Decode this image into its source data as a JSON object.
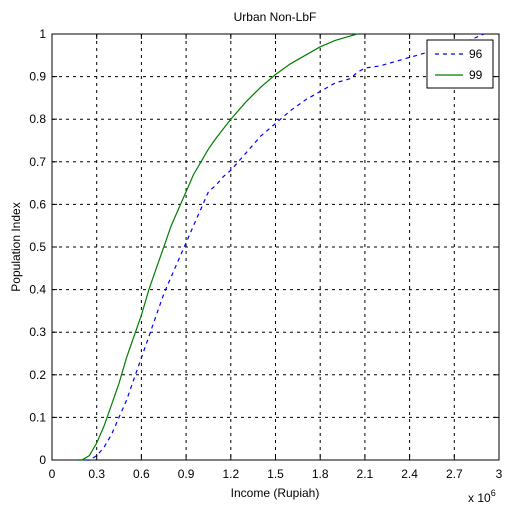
{
  "chart_data": {
    "type": "line",
    "title": "Urban Non-LbF",
    "xlabel": "Income (Rupiah)",
    "ylabel": "Population Index",
    "x_multiplier_base": "x 10",
    "x_multiplier_exp": "6",
    "xlim": [
      0,
      3
    ],
    "ylim": [
      0,
      1
    ],
    "x_ticks": [
      0,
      0.3,
      0.6,
      0.9,
      1.2,
      1.5,
      1.8,
      2.1,
      2.4,
      2.7,
      3
    ],
    "x_tick_labels": [
      "0",
      "0.3",
      "0.6",
      "0.9",
      "1.2",
      "1.5",
      "1.8",
      "2.1",
      "2.4",
      "2.7",
      "3"
    ],
    "y_ticks": [
      0,
      0.1,
      0.2,
      0.3,
      0.4,
      0.5,
      0.6,
      0.7,
      0.8,
      0.9,
      1
    ],
    "y_tick_labels": [
      "0",
      "0.1",
      "0.2",
      "0.3",
      "0.4",
      "0.5",
      "0.6",
      "0.7",
      "0.8",
      "0.9",
      "1"
    ],
    "grid": true,
    "legend_position": "top-right",
    "series": [
      {
        "name": "96",
        "color": "#0000ff",
        "dash": "dashed",
        "x": [
          0.17,
          0.25,
          0.3,
          0.35,
          0.4,
          0.45,
          0.5,
          0.55,
          0.6,
          0.65,
          0.7,
          0.75,
          0.8,
          0.85,
          0.9,
          0.95,
          1.0,
          1.05,
          1.1,
          1.15,
          1.2,
          1.3,
          1.4,
          1.5,
          1.6,
          1.7,
          1.8,
          1.9,
          2.0,
          2.05,
          2.1,
          2.2,
          2.3,
          2.4,
          2.5,
          2.6,
          2.7,
          2.8,
          2.9
        ],
        "y": [
          0,
          0,
          0.01,
          0.03,
          0.06,
          0.1,
          0.14,
          0.19,
          0.24,
          0.29,
          0.34,
          0.39,
          0.43,
          0.47,
          0.51,
          0.55,
          0.59,
          0.63,
          0.645,
          0.665,
          0.68,
          0.72,
          0.76,
          0.79,
          0.82,
          0.845,
          0.865,
          0.885,
          0.895,
          0.91,
          0.92,
          0.925,
          0.935,
          0.945,
          0.955,
          0.965,
          0.975,
          0.985,
          1.0
        ]
      },
      {
        "name": "99",
        "color": "#007f00",
        "dash": "solid",
        "x": [
          0.17,
          0.2,
          0.25,
          0.3,
          0.35,
          0.4,
          0.45,
          0.5,
          0.55,
          0.6,
          0.65,
          0.7,
          0.75,
          0.8,
          0.85,
          0.9,
          0.95,
          1.0,
          1.05,
          1.1,
          1.2,
          1.3,
          1.4,
          1.5,
          1.6,
          1.7,
          1.8,
          1.9,
          2.0,
          2.05
        ],
        "y": [
          0,
          0.0,
          0.01,
          0.04,
          0.08,
          0.13,
          0.18,
          0.24,
          0.29,
          0.34,
          0.4,
          0.45,
          0.5,
          0.55,
          0.59,
          0.63,
          0.67,
          0.7,
          0.73,
          0.755,
          0.8,
          0.84,
          0.875,
          0.905,
          0.93,
          0.95,
          0.97,
          0.985,
          0.995,
          1.0
        ]
      }
    ]
  }
}
